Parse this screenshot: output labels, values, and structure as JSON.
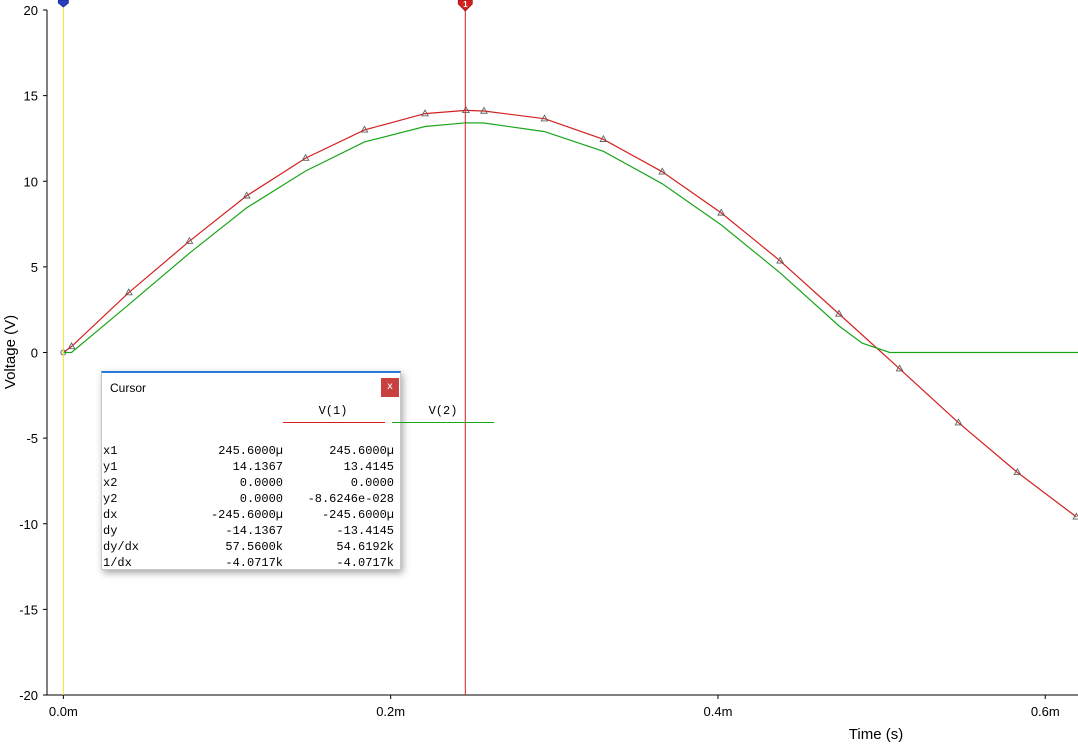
{
  "chart_data": {
    "type": "line",
    "xlabel": "Time (s)",
    "ylabel": "Voltage (V)",
    "xlim": [
      -1e-05,
      0.00062
    ],
    "ylim": [
      -20,
      20
    ],
    "x_ticks": [
      {
        "value": 0,
        "label": "0.0m"
      },
      {
        "value": 0.0002,
        "label": "0.2m"
      },
      {
        "value": 0.0004,
        "label": "0.4m"
      },
      {
        "value": 0.0006,
        "label": "0.6m"
      }
    ],
    "y_ticks": [
      {
        "value": 20,
        "label": "20"
      },
      {
        "value": 15,
        "label": "15"
      },
      {
        "value": 10,
        "label": "10"
      },
      {
        "value": 5,
        "label": "5"
      },
      {
        "value": 0,
        "label": "0"
      },
      {
        "value": -5,
        "label": "-5"
      },
      {
        "value": -10,
        "label": "-10"
      },
      {
        "value": -15,
        "label": "-15"
      },
      {
        "value": -20,
        "label": "-20"
      }
    ],
    "grid": false,
    "series": [
      {
        "name": "V(1)",
        "color": "#d42020",
        "marker": "triangle",
        "x": [
          0,
          5e-06,
          4e-05,
          7.7e-05,
          0.000112,
          0.000148,
          0.000184,
          0.000221,
          0.000246,
          0.000257,
          0.000294,
          0.00033,
          0.000366,
          0.000402,
          0.000438,
          0.000474,
          0.000511,
          0.000547,
          0.000583,
          0.000619
        ],
        "y": [
          0.0,
          0.35,
          3.5,
          6.5,
          9.15,
          11.35,
          13.0,
          13.95,
          14.1367,
          14.1,
          13.65,
          12.45,
          10.55,
          8.15,
          5.35,
          2.25,
          -0.95,
          -4.1,
          -7.0,
          -9.6
        ]
      },
      {
        "name": "V(2)",
        "color": "#1aa51a",
        "marker": "none",
        "x": [
          0,
          5e-06,
          4e-05,
          7.7e-05,
          0.000112,
          0.000148,
          0.000184,
          0.000221,
          0.000246,
          0.000257,
          0.000294,
          0.00033,
          0.000366,
          0.000402,
          0.000438,
          0.000474,
          0.000488,
          0.000505,
          0.00062
        ],
        "y": [
          0.0,
          0.0,
          2.8,
          5.8,
          8.45,
          10.6,
          12.3,
          13.2,
          13.4145,
          13.4,
          12.9,
          11.75,
          9.85,
          7.45,
          4.65,
          1.55,
          0.55,
          0.0,
          0.0
        ]
      }
    ],
    "cursors": [
      {
        "name": "1",
        "x": 0.0002456,
        "color": "#d42020"
      },
      {
        "name": "2",
        "x": 0.0,
        "color": "#e8e830"
      }
    ]
  },
  "cursor_window": {
    "title": "Cursor",
    "close_label": "x",
    "columns": [
      {
        "name": "V(1)",
        "color": "#d42020"
      },
      {
        "name": "V(2)",
        "color": "#1aa51a"
      }
    ],
    "rows": [
      {
        "label": "x1",
        "v1": "245.6000µ",
        "v2": "245.6000µ"
      },
      {
        "label": "y1",
        "v1": "14.1367",
        "v2": "13.4145"
      },
      {
        "label": "x2",
        "v1": "0.0000",
        "v2": "0.0000"
      },
      {
        "label": "y2",
        "v1": "0.0000",
        "v2": "-8.6246e-028"
      },
      {
        "label": "dx",
        "v1": "-245.6000µ",
        "v2": "-245.6000µ"
      },
      {
        "label": "dy",
        "v1": "-14.1367",
        "v2": "-13.4145"
      },
      {
        "label": "dy/dx",
        "v1": "57.5600k",
        "v2": "54.6192k"
      },
      {
        "label": "1/dx",
        "v1": "-4.0717k",
        "v2": "-4.0717k"
      }
    ]
  }
}
